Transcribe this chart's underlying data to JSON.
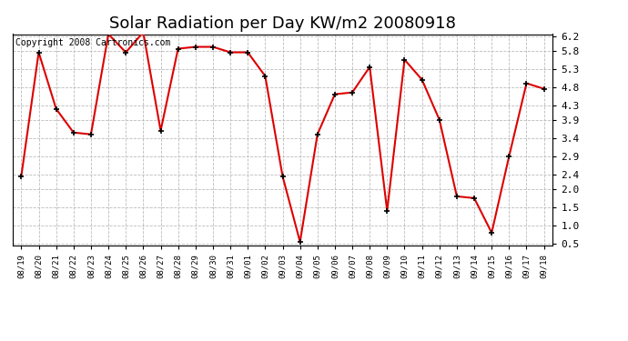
{
  "title": "Solar Radiation per Day KW/m2 20080918",
  "copyright_text": "Copyright 2008 Cartronics.com",
  "x_labels": [
    "08/19",
    "08/20",
    "08/21",
    "08/22",
    "08/23",
    "08/24",
    "08/25",
    "08/26",
    "08/27",
    "08/28",
    "08/29",
    "08/30",
    "08/31",
    "09/01",
    "09/02",
    "09/03",
    "09/04",
    "09/05",
    "09/06",
    "09/07",
    "09/08",
    "09/09",
    "09/10",
    "09/11",
    "09/12",
    "09/13",
    "09/14",
    "09/15",
    "09/16",
    "09/17",
    "09/18"
  ],
  "y_values": [
    2.35,
    5.75,
    4.2,
    3.55,
    3.5,
    6.25,
    5.75,
    6.3,
    3.6,
    5.85,
    5.9,
    5.9,
    5.75,
    5.75,
    5.1,
    2.35,
    0.55,
    3.5,
    4.6,
    4.65,
    5.35,
    1.4,
    5.55,
    5.0,
    3.9,
    1.8,
    1.75,
    0.8,
    2.9,
    4.9,
    4.75
  ],
  "line_color": "#dd0000",
  "marker_color": "#000000",
  "bg_color": "#ffffff",
  "grid_color": "#bbbbbb",
  "y_min": 0.5,
  "y_max": 6.2,
  "y_ticks": [
    0.5,
    1.0,
    1.5,
    2.0,
    2.4,
    2.9,
    3.4,
    3.9,
    4.3,
    4.8,
    5.3,
    5.8,
    6.2
  ],
  "title_fontsize": 13,
  "copyright_fontsize": 7
}
